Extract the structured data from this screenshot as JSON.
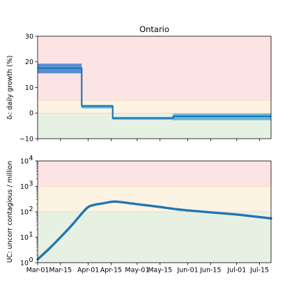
{
  "colors": {
    "red_zone": "#fde4e4",
    "yellow_zone": "#fdf3e3",
    "green_zone": "#e7f1e3",
    "zone_line": "#f3d2b4",
    "line": "#1f77b4",
    "band_dark": "#3c7fd0",
    "band_light": "#4db0d8",
    "axis": "#000000"
  },
  "chart_data": [
    {
      "type": "line",
      "title": "Ontario",
      "ylabel": "δᵢ: daily growth (%)",
      "x_domain": [
        "2020-03-01",
        "2020-07-22"
      ],
      "ylim": [
        -10,
        30
      ],
      "yticks": [
        "−10",
        "0",
        "10",
        "20",
        "30"
      ],
      "ytick_values": [
        -10,
        0,
        10,
        20,
        30
      ],
      "zones": [
        {
          "name": "red",
          "from": 5,
          "to": 30
        },
        {
          "name": "yellow",
          "from": 0,
          "to": 5
        },
        {
          "name": "green",
          "from": -10,
          "to": 0
        }
      ],
      "series": [
        {
          "segments": [
            {
              "start": "2020-03-01",
              "end": "2020-03-28",
              "value": 17.5,
              "low": 15.5,
              "high": 19.3,
              "band": "dark"
            },
            {
              "start": "2020-03-28",
              "end": "2020-04-16",
              "value": 2.7,
              "low": 1.8,
              "high": 3.2,
              "band": "light"
            },
            {
              "start": "2020-04-16",
              "end": "2020-05-23",
              "value": -2.0,
              "low": -2.6,
              "high": -1.5,
              "band": "light"
            },
            {
              "start": "2020-05-23",
              "end": "2020-07-22",
              "value": -1.3,
              "low": -2.8,
              "high": -0.2,
              "band": "light"
            }
          ]
        }
      ]
    },
    {
      "type": "line",
      "ylabel": "UC: uncorr contagious / million",
      "yscale": "log",
      "x_domain": [
        "2020-03-01",
        "2020-07-22"
      ],
      "ylim": [
        1,
        10000
      ],
      "ytick_values": [
        1,
        10,
        100,
        1000,
        10000
      ],
      "yticks": [
        {
          "base": "10",
          "exp": "0"
        },
        {
          "base": "10",
          "exp": "1"
        },
        {
          "base": "10",
          "exp": "2"
        },
        {
          "base": "10",
          "exp": "3"
        },
        {
          "base": "10",
          "exp": "4"
        }
      ],
      "zones": [
        {
          "name": "red",
          "from": 1000,
          "to": 10000
        },
        {
          "name": "yellow",
          "from": 100,
          "to": 1000
        },
        {
          "name": "green",
          "from": 1,
          "to": 100
        }
      ],
      "series": [
        {
          "x": [
            "2020-03-01",
            "2020-03-08",
            "2020-03-15",
            "2020-03-22",
            "2020-03-28",
            "2020-04-01",
            "2020-04-05",
            "2020-04-10",
            "2020-04-16",
            "2020-04-20",
            "2020-05-01",
            "2020-05-15",
            "2020-05-28",
            "2020-06-15",
            "2020-07-01",
            "2020-07-22"
          ],
          "y": [
            1.35,
            3.5,
            10,
            30,
            85,
            155,
            190,
            215,
            250,
            245,
            200,
            155,
            120,
            95,
            78,
            55
          ]
        }
      ],
      "xticks": [
        "Mar-01",
        "Mar-15",
        "Apr-01",
        "Apr-15",
        "May-01",
        "May-15",
        "Jun-01",
        "Jun-15",
        "Jul-01",
        "Jul-15"
      ],
      "xtick_dates": [
        "2020-03-01",
        "2020-03-15",
        "2020-04-01",
        "2020-04-15",
        "2020-05-01",
        "2020-05-15",
        "2020-06-01",
        "2020-06-15",
        "2020-07-01",
        "2020-07-15"
      ]
    }
  ]
}
